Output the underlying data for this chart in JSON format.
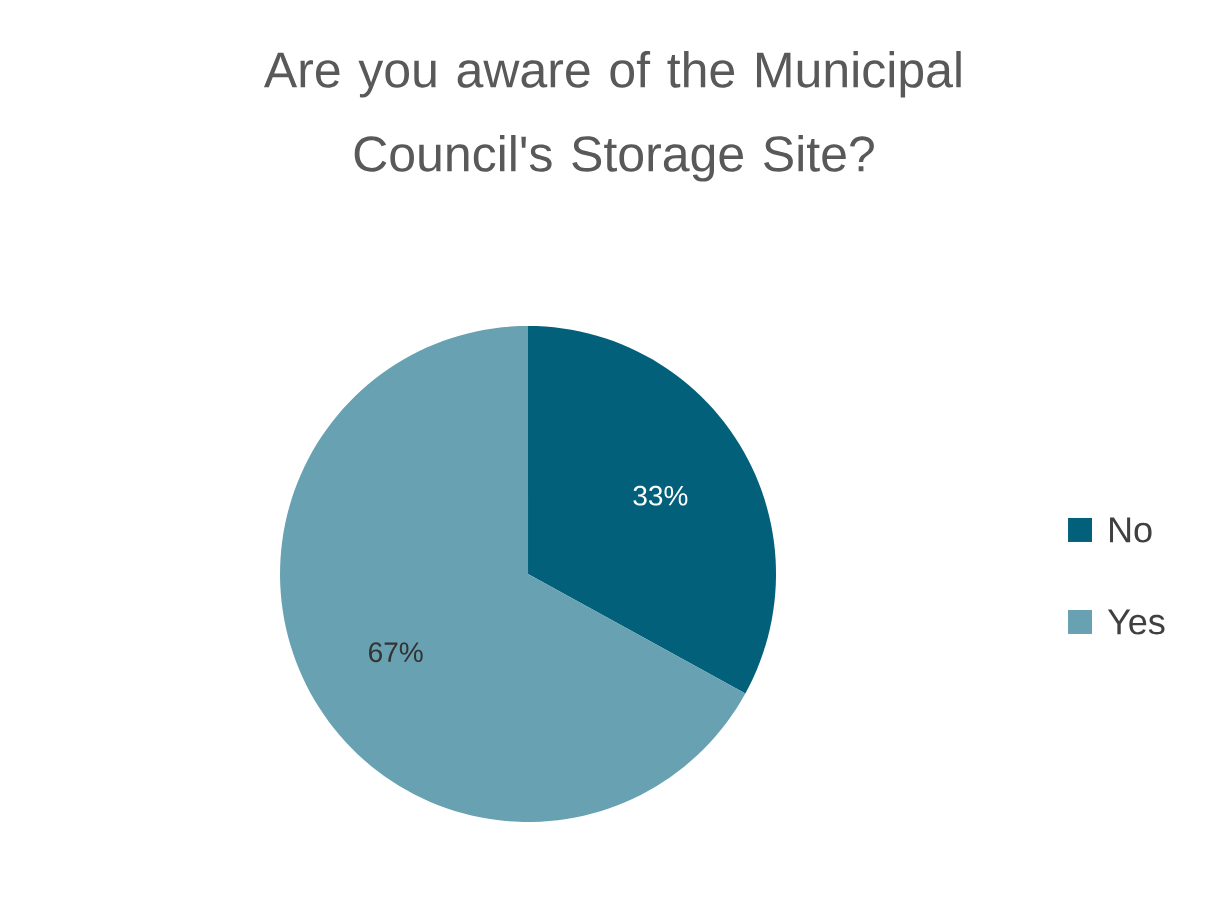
{
  "chart_data": {
    "type": "pie",
    "title": "Are you aware of the Municipal Council's Storage Site?",
    "categories": [
      "No",
      "Yes"
    ],
    "values": [
      33,
      67
    ],
    "colors": [
      "#03607a",
      "#68a1b1"
    ],
    "value_labels": [
      "33%",
      "67%"
    ],
    "legend": "right"
  }
}
